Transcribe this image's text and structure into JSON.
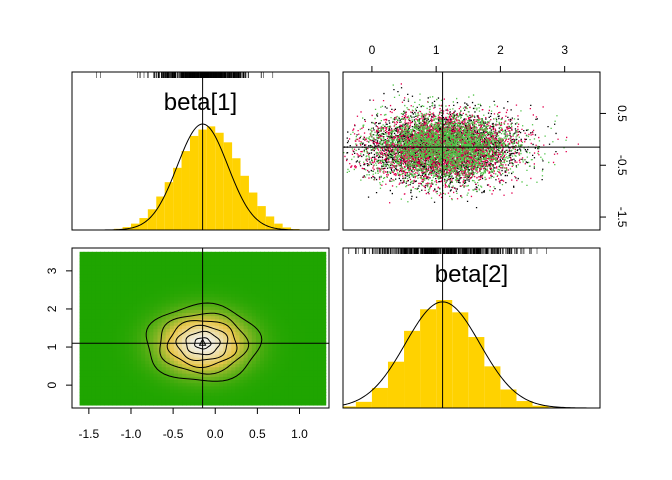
{
  "chart_data": {
    "type": "pairs",
    "layout": "2x2",
    "colors": {
      "histogram_fill": "#FFD200",
      "density_line": "#000000",
      "scatter_chains": [
        "#000000",
        "#E3004F",
        "#52C449"
      ],
      "heatmap_low": "#1FA500",
      "heatmap_mid": "#E8C64A",
      "heatmap_high": "#F2F2F2"
    },
    "parameters": [
      {
        "name": "beta[1]",
        "mean": -0.15,
        "sd": 0.3,
        "xlim": [
          -1.7,
          1.35
        ],
        "ticks": [
          -1.5,
          -1.0,
          -0.5,
          0.0,
          0.5,
          1.0
        ],
        "tick_labels": [
          "-1.5",
          "-1.0",
          "-0.5",
          "0.0",
          "0.5",
          "1.0"
        ],
        "histogram": {
          "breaks": [
            -1.3,
            -1.2,
            -1.1,
            -1.0,
            -0.9,
            -0.8,
            -0.7,
            -0.6,
            -0.5,
            -0.4,
            -0.3,
            -0.2,
            -0.1,
            0.0,
            0.1,
            0.2,
            0.3,
            0.4,
            0.5,
            0.6,
            0.7,
            0.8,
            0.9,
            1.0
          ],
          "densities": [
            0.004,
            0.015,
            0.036,
            0.08,
            0.15,
            0.26,
            0.42,
            0.6,
            0.78,
            0.99,
            1.18,
            1.26,
            1.3,
            1.22,
            1.1,
            0.9,
            0.68,
            0.47,
            0.3,
            0.17,
            0.08,
            0.032,
            0.012
          ]
        },
        "marker": -0.15
      },
      {
        "name": "beta[2]",
        "mean": 1.1,
        "sd": 0.58,
        "xlim": [
          -0.45,
          3.55
        ],
        "ticks": [
          0,
          1,
          2,
          3
        ],
        "tick_labels": [
          "0",
          "1",
          "2",
          "3"
        ],
        "histogram": {
          "breaks": [
            -0.5,
            -0.25,
            0.0,
            0.25,
            0.5,
            0.75,
            1.0,
            1.25,
            1.5,
            1.75,
            2.0,
            2.25,
            2.5,
            2.75,
            3.0
          ],
          "densities": [
            0.01,
            0.04,
            0.13,
            0.3,
            0.5,
            0.64,
            0.7,
            0.62,
            0.46,
            0.27,
            0.12,
            0.045,
            0.015,
            0.005
          ]
        },
        "marker": 1.1
      }
    ],
    "scatter": {
      "x_param": "beta[2]",
      "y_param": "beta[1]",
      "xlim": [
        -0.45,
        3.55
      ],
      "ylim": [
        -1.75,
        1.3
      ],
      "xticks": [
        0,
        1,
        2,
        3
      ],
      "xtick_labels": [
        "0",
        "1",
        "2",
        "3"
      ],
      "yticks": [
        -1.5,
        -0.5,
        0.5
      ],
      "ytick_labels": [
        "-1.5",
        "-0.5",
        "0.5"
      ],
      "marker_x": 1.1,
      "marker_y": -0.15
    },
    "heatmap": {
      "x_param": "beta[1]",
      "y_param": "beta[2]",
      "xlim": [
        -1.7,
        1.35
      ],
      "ylim": [
        -0.6,
        3.6
      ],
      "xticks": [
        -1.5,
        -1.0,
        -0.5,
        0.0,
        0.5,
        1.0
      ],
      "xtick_labels": [
        "-1.5",
        "-1.0",
        "-0.5",
        "0.0",
        "0.5",
        "1.0"
      ],
      "yticks": [
        0,
        1,
        2,
        3
      ],
      "ytick_labels": [
        "0",
        "1",
        "2",
        "3"
      ],
      "contour_levels": [
        0.08,
        0.22,
        0.4,
        0.6,
        0.8,
        0.95
      ],
      "marker_x": -0.15,
      "marker_y": 1.1
    }
  }
}
